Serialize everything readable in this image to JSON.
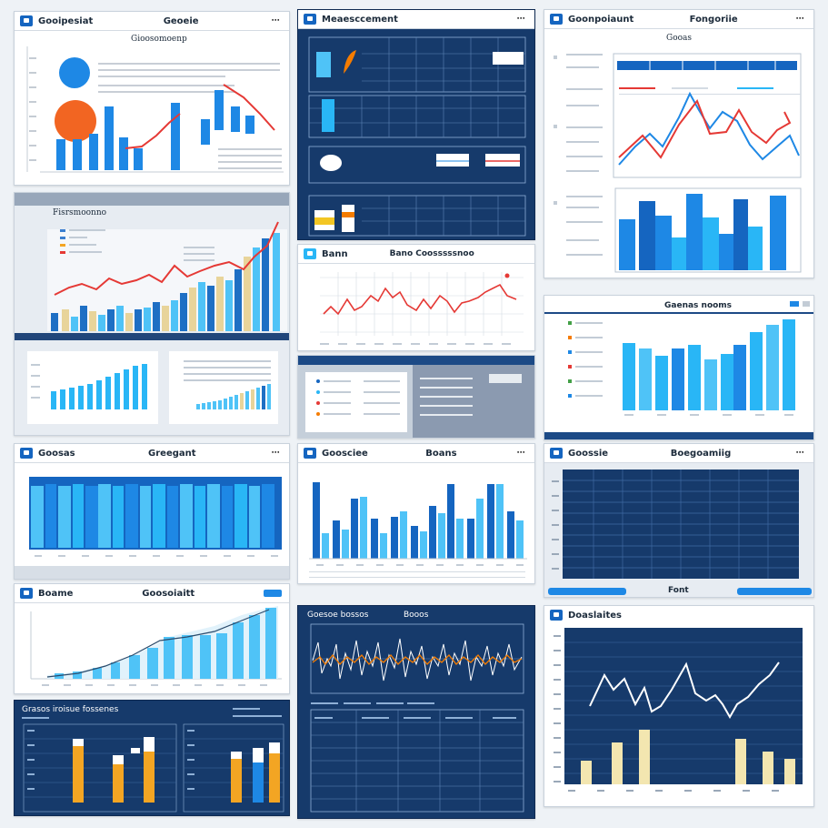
{
  "colors": {
    "blue_primary": "#1565c0",
    "blue_light": "#4fc3f7",
    "blue_mid": "#1e88e5",
    "red_line": "#e53935",
    "orange": "#f57c00",
    "gold": "#f3a523",
    "navy": "#163a6b",
    "beige": "#e8d49a"
  },
  "panels": {
    "p1": {
      "title_left": "Gooipesiat",
      "title_right": "Geoeie",
      "subtitle": "Gioosomoenp"
    },
    "p2": {
      "subtitle": "Fisrsmoonno"
    },
    "p3": {
      "title_left": "Meaesccement"
    },
    "p4": {
      "title_left": "Goonpoiaunt",
      "title_right": "Fongoriie",
      "subtitle": "Gooas"
    },
    "p5": {
      "title_left": "Bann",
      "title_right": "Bano Coosssssnoo"
    },
    "p6": {
      "title": "Gaenas nooms"
    },
    "p7": {
      "title_left": "Goosas",
      "title_right": "Greegant"
    },
    "p8": {
      "title_left": "Goosciee",
      "title_right": "Boans"
    },
    "p9": {
      "title_left": "Goossie",
      "title_right": "Boegoamiig",
      "footer": "Font"
    },
    "p10": {
      "title_left": "Boame",
      "title_right": "Goosoiaitt"
    },
    "p11": {
      "title_left": "Goesoe bossos",
      "title_right": "Booos"
    },
    "p12": {
      "title": "Doaslaites"
    },
    "p13": {
      "title": "Grasos iroisue fossenes"
    }
  },
  "icons": [
    "app-icon",
    "menu-icon",
    "caret-down-icon"
  ]
}
